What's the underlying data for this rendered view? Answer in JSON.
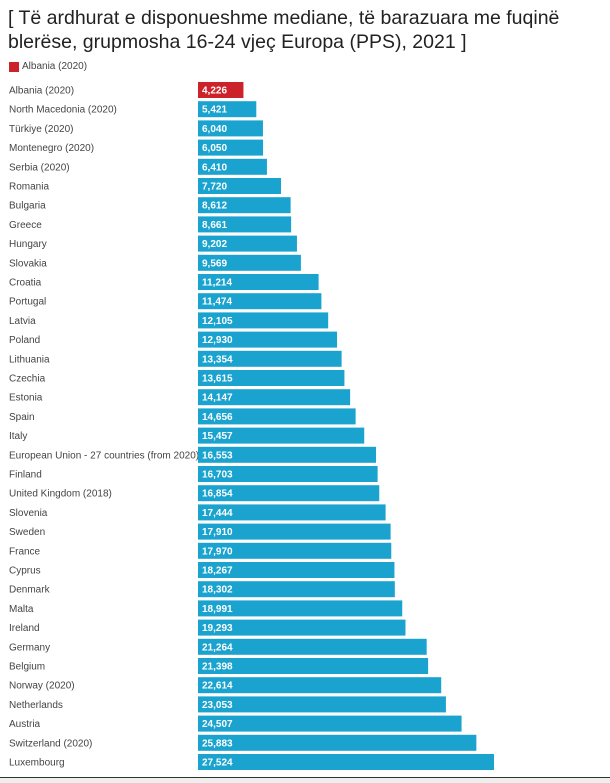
{
  "chart_data": {
    "type": "bar",
    "orientation": "horizontal",
    "title": "[ Të ardhurat e disponueshme mediane, të barazuara me fuqinë blerëse, grupmosha 16-24 vjeç Europa (PPS), 2021 ]",
    "legend": [
      {
        "label": "Albania (2020)",
        "color": "#cc2229"
      }
    ],
    "highlight_color": "#cc2229",
    "bar_color": "#1ba3cf",
    "xlim": [
      0,
      27524
    ],
    "categories": [
      "Albania (2020)",
      "North Macedonia (2020)",
      "Türkiye (2020)",
      "Montenegro (2020)",
      "Serbia (2020)",
      "Romania",
      "Bulgaria",
      "Greece",
      "Hungary",
      "Slovakia",
      "Croatia",
      "Portugal",
      "Latvia",
      "Poland",
      "Lithuania",
      "Czechia",
      "Estonia",
      "Spain",
      "Italy",
      "European Union - 27 countries (from 2020)",
      "Finland",
      "United Kingdom (2018)",
      "Slovenia",
      "Sweden",
      "France",
      "Cyprus",
      "Denmark",
      "Malta",
      "Ireland",
      "Germany",
      "Belgium",
      "Norway (2020)",
      "Netherlands",
      "Austria",
      "Switzerland (2020)",
      "Luxembourg"
    ],
    "values": [
      4226,
      5421,
      6040,
      6050,
      6410,
      7720,
      8612,
      8661,
      9202,
      9569,
      11214,
      11474,
      12105,
      12930,
      13354,
      13615,
      14147,
      14656,
      15457,
      16553,
      16703,
      16854,
      17444,
      17910,
      17970,
      18267,
      18302,
      18991,
      19293,
      21264,
      21398,
      22614,
      23053,
      24507,
      25883,
      27524
    ],
    "value_labels": [
      "4,226",
      "5,421",
      "6,040",
      "6,050",
      "6,410",
      "7,720",
      "8,612",
      "8,661",
      "9,202",
      "9,569",
      "11,214",
      "11,474",
      "12,105",
      "12,930",
      "13,354",
      "13,615",
      "14,147",
      "14,656",
      "15,457",
      "16,553",
      "16,703",
      "16,854",
      "17,444",
      "17,910",
      "17,970",
      "18,267",
      "18,302",
      "18,991",
      "19,293",
      "21,264",
      "21,398",
      "22,614",
      "23,053",
      "24,507",
      "25,883",
      "27,524"
    ],
    "highlighted": [
      0
    ]
  }
}
